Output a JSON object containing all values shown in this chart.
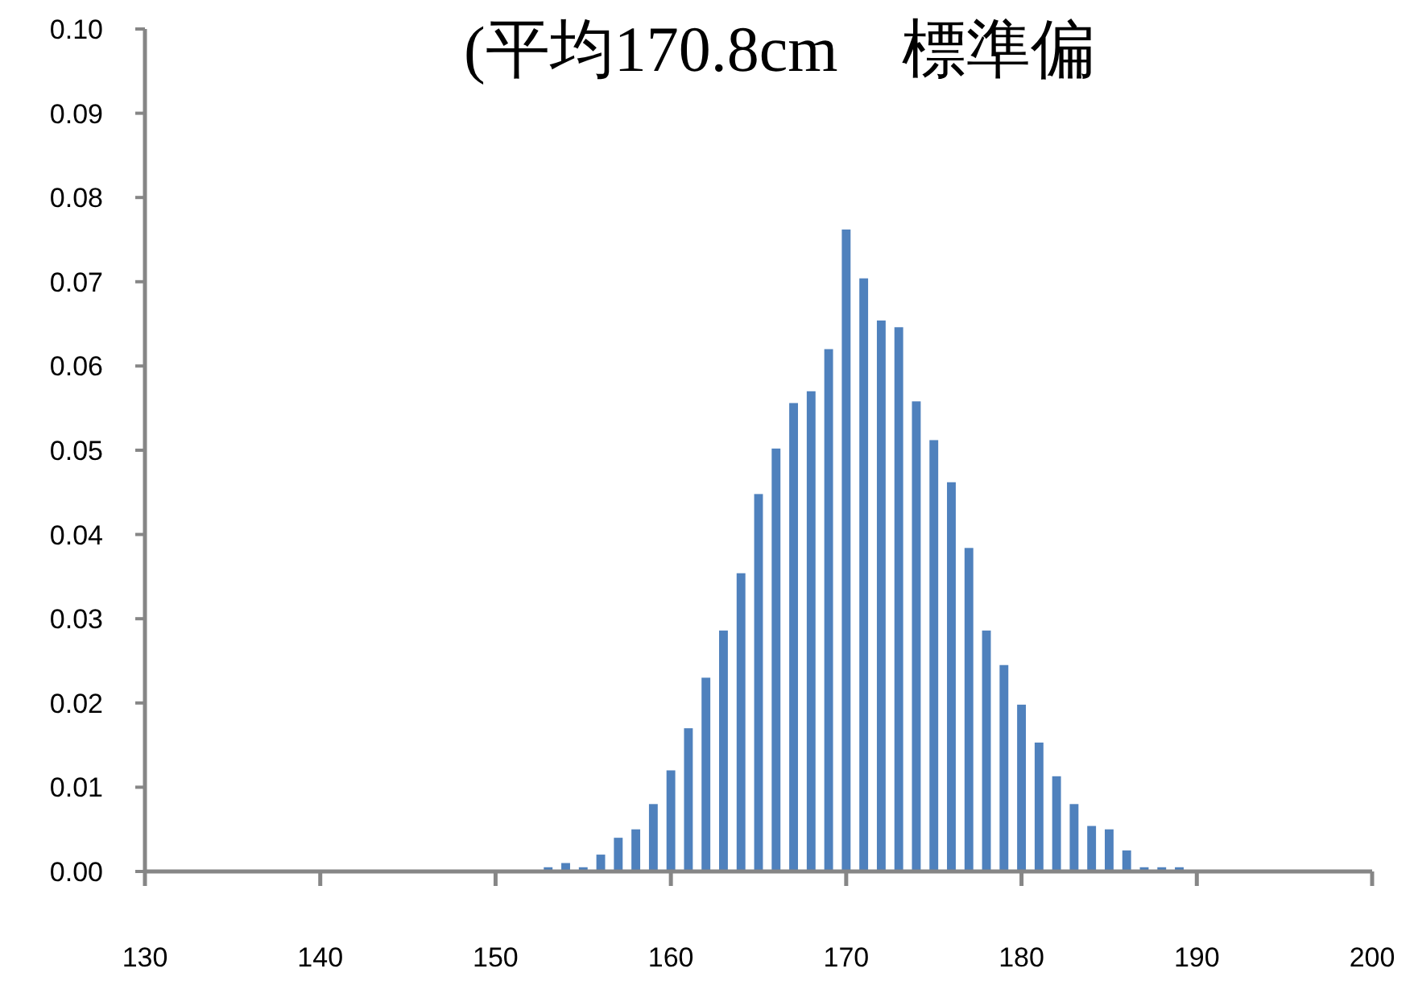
{
  "chart_data": {
    "type": "bar",
    "title": "(平均170.8cm　標準偏",
    "x": [
      153,
      154,
      155,
      156,
      157,
      158,
      159,
      160,
      161,
      162,
      163,
      164,
      165,
      166,
      167,
      168,
      169,
      170,
      171,
      172,
      173,
      174,
      175,
      176,
      177,
      178,
      179,
      180,
      181,
      182,
      183,
      184,
      185,
      186,
      187,
      188,
      189
    ],
    "values": [
      0.0005,
      0.001,
      0.0005,
      0.002,
      0.004,
      0.005,
      0.008,
      0.012,
      0.017,
      0.023,
      0.0286,
      0.0354,
      0.0448,
      0.0502,
      0.0556,
      0.057,
      0.062,
      0.0762,
      0.0704,
      0.0654,
      0.0646,
      0.0558,
      0.0512,
      0.0462,
      0.0384,
      0.0286,
      0.0245,
      0.0198,
      0.0153,
      0.0113,
      0.008,
      0.0054,
      0.005,
      0.0025,
      0.0005,
      0.0005,
      0.0005
    ],
    "color": "#4f81bd",
    "xlim": [
      130,
      200
    ],
    "xticks": [
      130,
      140,
      150,
      160,
      170,
      180,
      190,
      200
    ],
    "ylim": [
      0,
      0.1
    ],
    "yticks": [
      {
        "value": 0,
        "label": "0.00"
      },
      {
        "value": 0.01,
        "label": "0.01"
      },
      {
        "value": 0.02,
        "label": "0.02"
      },
      {
        "value": 0.03,
        "label": "0.03"
      },
      {
        "value": 0.04,
        "label": "0.04"
      },
      {
        "value": 0.05,
        "label": "0.05"
      },
      {
        "value": 0.06,
        "label": "0.06"
      },
      {
        "value": 0.07,
        "label": "0.07"
      },
      {
        "value": 0.08,
        "label": "0.08"
      },
      {
        "value": 0.09,
        "label": "0.09"
      },
      {
        "value": 0.1,
        "label": "0.10"
      }
    ],
    "grid": false
  }
}
